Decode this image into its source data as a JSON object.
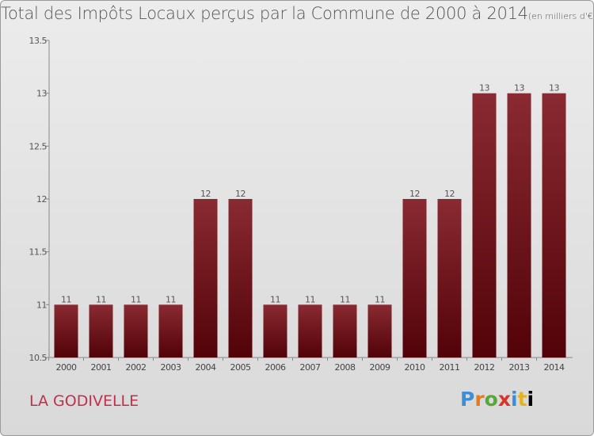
{
  "chart_data": {
    "type": "bar",
    "title": "Total des Impôts Locaux perçus par la Commune de 2000 à 2014",
    "title_unit": "(en milliers d'€)",
    "categories": [
      "2000",
      "2001",
      "2002",
      "2003",
      "2004",
      "2005",
      "2006",
      "2007",
      "2008",
      "2009",
      "2010",
      "2011",
      "2012",
      "2013",
      "2014"
    ],
    "values": [
      11,
      11,
      11,
      11,
      12,
      12,
      11,
      11,
      11,
      11,
      12,
      12,
      13,
      13,
      13
    ],
    "data_labels": [
      "11",
      "11",
      "11",
      "11",
      "12",
      "12",
      "11",
      "11",
      "11",
      "11",
      "12",
      "12",
      "13",
      "13",
      "13"
    ],
    "ylim": [
      10.5,
      13.5
    ],
    "yticks": [
      10.5,
      11,
      11.5,
      12,
      12.5,
      13,
      13.5
    ],
    "ytick_labels": [
      "10.5",
      "11",
      "11.5",
      "12",
      "12.5",
      "13",
      "13.5"
    ],
    "grid": false,
    "bar_color": "#6e1219"
  },
  "footer": {
    "town": "LA GODIVELLE",
    "logo": [
      "P",
      "r",
      "o",
      "x",
      "i",
      "t",
      "i"
    ]
  }
}
